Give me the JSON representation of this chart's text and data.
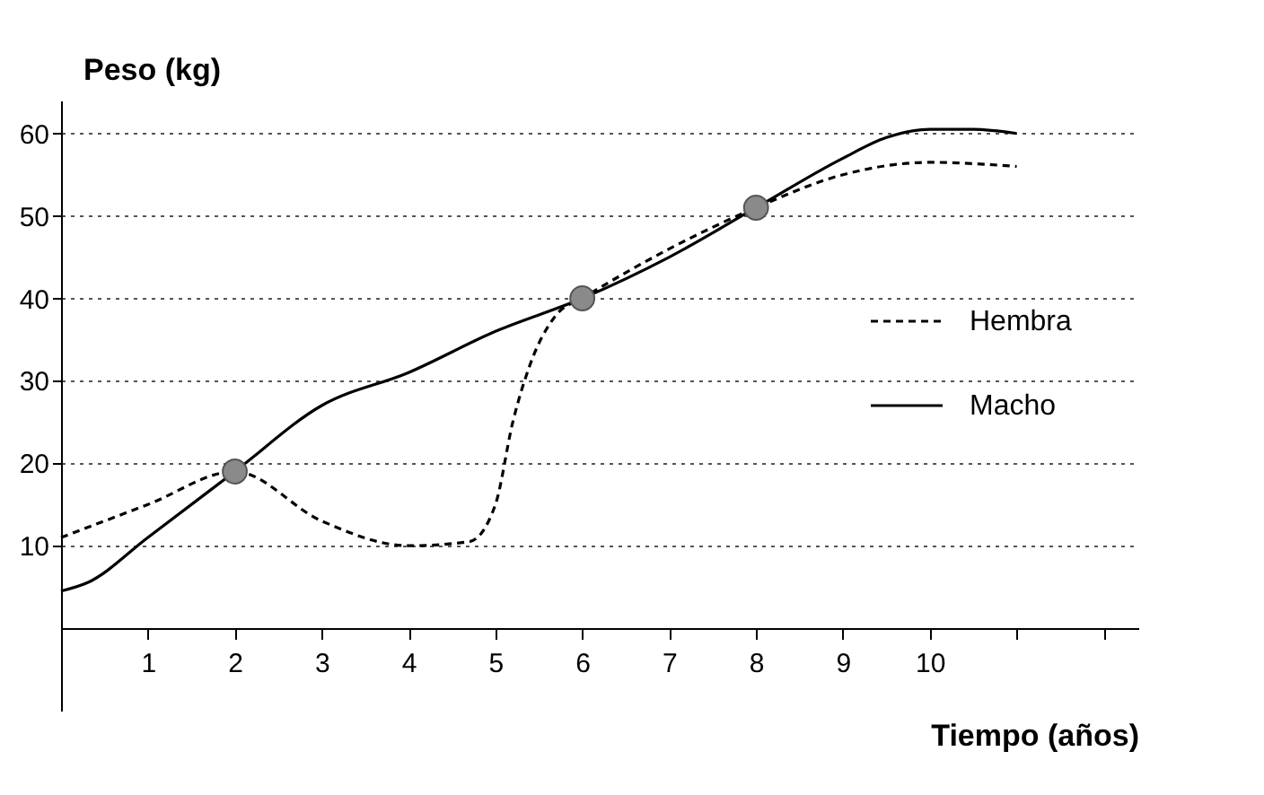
{
  "chart_data": {
    "type": "line",
    "xlabel": "Tiempo (años)",
    "ylabel": "Peso (kg)",
    "xlim": [
      0,
      12.4
    ],
    "ylim": [
      -10,
      64
    ],
    "xticks": [
      1,
      2,
      3,
      4,
      5,
      6,
      7,
      8,
      9,
      10,
      {
        "value": 11,
        "label": null
      },
      {
        "value": 12,
        "label": null
      }
    ],
    "yticks": [
      10,
      20,
      30,
      40,
      50,
      60
    ],
    "grid": "y",
    "legend": "right",
    "series": [
      {
        "name": "Hembra",
        "color": "#000000",
        "line_style": "dashed",
        "x": [
          0,
          1,
          2,
          3,
          4,
          4.7,
          5,
          5.2,
          5.4,
          5.7,
          6,
          7,
          8,
          9,
          10,
          11
        ],
        "values": [
          11,
          15,
          19,
          13,
          10,
          10.5,
          15,
          25,
          32,
          38,
          40,
          46,
          51,
          55,
          56.5,
          56
        ]
      },
      {
        "name": "Macho",
        "color": "#000000",
        "line_style": "solid",
        "x": [
          0,
          0.3,
          1,
          2,
          3,
          4,
          5,
          6,
          7,
          8,
          9,
          9.5,
          10,
          10.5,
          11
        ],
        "values": [
          4.5,
          5.5,
          11,
          19,
          27,
          31,
          36,
          40,
          45,
          51,
          57,
          59.5,
          60.5,
          60.5,
          60
        ]
      },
      {
        "type": "scatter",
        "color": "#8a8a8a",
        "marker": "circle",
        "x": [
          2,
          6,
          8
        ],
        "values": [
          19,
          40,
          51
        ]
      }
    ]
  }
}
